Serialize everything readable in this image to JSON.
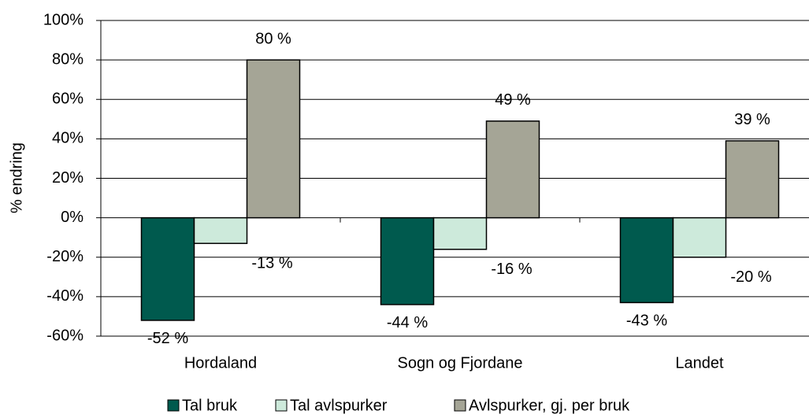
{
  "chart_data": {
    "type": "bar",
    "y_label": "% endring",
    "categories": [
      "Hordaland",
      "Sogn og Fjordane",
      "Landet"
    ],
    "series": [
      {
        "name": "Tal bruk",
        "color": "#005a4e",
        "values": [
          -52,
          -44,
          -43
        ],
        "value_labels": [
          "-52 %",
          "-44 %",
          "-43 %"
        ]
      },
      {
        "name": "Tal avlspurker",
        "color": "#cdeadb",
        "values": [
          -13,
          -16,
          -20
        ],
        "value_labels": [
          "-13 %",
          "-16 %",
          "-20 %"
        ]
      },
      {
        "name": "Avlspurker, gj. per bruk",
        "color": "#a5a596",
        "values": [
          80,
          49,
          39
        ],
        "value_labels": [
          "80 %",
          "49 %",
          "39 %"
        ]
      }
    ],
    "ylim": [
      -60,
      100
    ],
    "yticks": [
      {
        "value": -60,
        "label": "-60%"
      },
      {
        "value": -40,
        "label": "-40%"
      },
      {
        "value": -20,
        "label": "-20%"
      },
      {
        "value": 0,
        "label": "0%"
      },
      {
        "value": 20,
        "label": "20%"
      },
      {
        "value": 40,
        "label": "40%"
      },
      {
        "value": 60,
        "label": "60%"
      },
      {
        "value": 80,
        "label": "80%"
      },
      {
        "value": 100,
        "label": "100%"
      }
    ],
    "grid": true,
    "legend": "bottom"
  }
}
